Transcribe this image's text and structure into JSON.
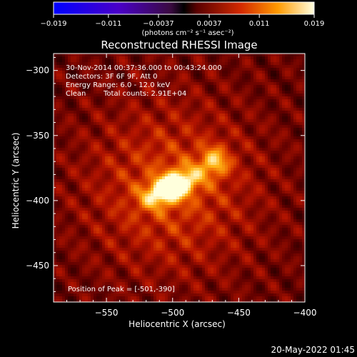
{
  "chart_data": {
    "type": "heatmap",
    "title": "Reconstructed RHESSI Image",
    "xlabel": "Heliocentric X (arcsec)",
    "ylabel": "Heliocentric Y (arcsec)",
    "xlim": [
      -590,
      -400
    ],
    "ylim": [
      -478,
      -287
    ],
    "x_ticks": [
      -550,
      -500,
      -450,
      -400
    ],
    "x_tick_labels": [
      "−550",
      "−500",
      "−450",
      "−400"
    ],
    "y_ticks": [
      -300,
      -350,
      -400,
      -450
    ],
    "y_tick_labels": [
      "−300",
      "−350",
      "−400",
      "−450"
    ],
    "colorbar": {
      "range": [
        -0.019,
        0.019
      ],
      "ticks": [
        -0.019,
        -0.011,
        -0.0037,
        0.0037,
        0.011,
        0.019
      ],
      "tick_labels": [
        "−0.019",
        "−0.011",
        "−0.0037",
        "0.0037",
        "0.011",
        "0.019"
      ],
      "unit_label": "(photons cm⁻² s⁻¹ asec⁻²)"
    },
    "annotations": {
      "time_range": "30-Nov-2014 00:37:36.000 to 00:43:24.000",
      "detectors": "Detectors: 3F 6F 9F, Att 0",
      "energy": "Energy Range: 6.0 - 12.0 keV",
      "method": "Clean",
      "counts": "Total counts: 2.91E+04",
      "peak": "Position of Peak = [-501,-390]"
    },
    "peak_position": [
      -501,
      -390
    ],
    "sources": [
      {
        "x": -501,
        "y": -390,
        "value": 0.019
      },
      {
        "x": -468,
        "y": -370,
        "value": 0.0085
      }
    ]
  },
  "timestamp": "20-May-2022 01:45"
}
